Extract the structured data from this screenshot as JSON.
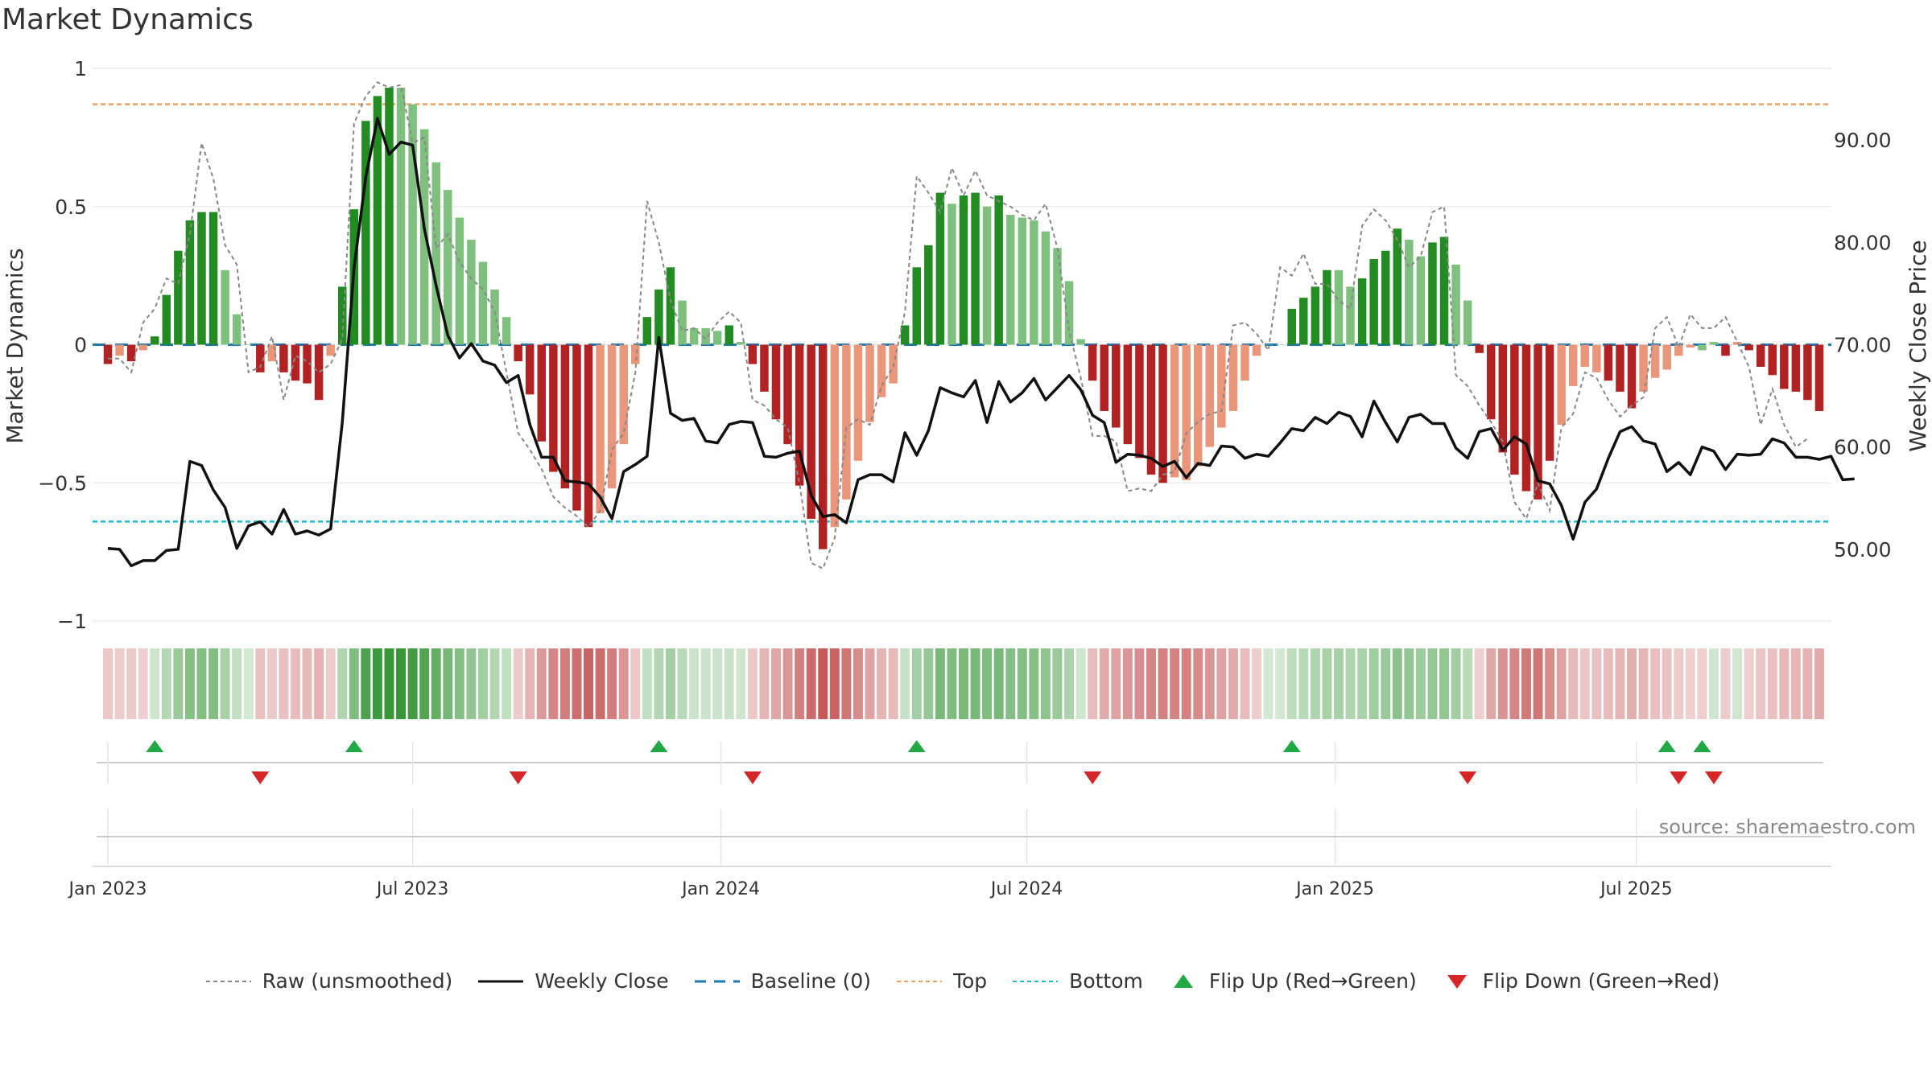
{
  "title": "Market Dynamics",
  "source": "source: sharemaestro.com",
  "colors": {
    "strong_green": "#228b22",
    "light_green": "#7fc07f",
    "strong_red": "#b22222",
    "light_red": "#e9967a",
    "close_line": "#111111",
    "raw_line": "#888888",
    "baseline": "#1f77b4",
    "top_line": "#f0a060",
    "bottom_line": "#17becf",
    "flip_up": "#22a845",
    "flip_down": "#d62728"
  },
  "legend": {
    "raw": "Raw (unsmoothed)",
    "close": "Weekly Close",
    "baseline": "Baseline (0)",
    "top": "Top",
    "bottom": "Bottom",
    "flip_up": "Flip Up (Red→Green)",
    "flip_down": "Flip Down (Green→Red)"
  },
  "chart_data": {
    "type": "bar",
    "title": "Market Dynamics",
    "ylabel_left": "Market Dynamics",
    "ylabel_right": "Weekly Close Price",
    "ylim_left": [
      -1,
      1
    ],
    "ylim_right": [
      43,
      97
    ],
    "left_ticks": [
      {
        "v": 1,
        "label": "1"
      },
      {
        "v": 0.5,
        "label": "0.5"
      },
      {
        "v": 0,
        "label": "0"
      },
      {
        "v": -0.5,
        "label": "−0.5"
      },
      {
        "v": -1,
        "label": "−1"
      }
    ],
    "right_ticks": [
      {
        "v": 90,
        "label": "90.00"
      },
      {
        "v": 80,
        "label": "80.00"
      },
      {
        "v": 70,
        "label": "70.00"
      },
      {
        "v": 60,
        "label": "60.00"
      },
      {
        "v": 50,
        "label": "50.00"
      }
    ],
    "x_ticks": [
      {
        "i": 0,
        "label": "Jan 2023"
      },
      {
        "i": 26,
        "label": "Jul 2023"
      },
      {
        "i": 52.3,
        "label": "Jan 2024"
      },
      {
        "i": 78.4,
        "label": "Jul 2024"
      },
      {
        "i": 104.7,
        "label": "Jan 2025"
      },
      {
        "i": 130.4,
        "label": "Jul 2025"
      }
    ],
    "top_level": 0.87,
    "bottom_level": -0.64,
    "baseline": 0,
    "md_values": [
      -0.07,
      -0.04,
      -0.06,
      -0.02,
      0.03,
      0.18,
      0.34,
      0.45,
      0.48,
      0.48,
      0.27,
      0.11,
      0.0,
      -0.1,
      -0.06,
      -0.1,
      -0.13,
      -0.14,
      -0.2,
      -0.04,
      0.21,
      0.49,
      0.81,
      0.9,
      0.93,
      0.93,
      0.87,
      0.78,
      0.66,
      0.56,
      0.46,
      0.38,
      0.3,
      0.2,
      0.1,
      -0.06,
      -0.18,
      -0.35,
      -0.46,
      -0.52,
      -0.6,
      -0.66,
      -0.61,
      -0.52,
      -0.36,
      -0.07,
      0.1,
      0.2,
      0.28,
      0.16,
      0.06,
      0.06,
      0.05,
      0.07,
      0.01,
      -0.07,
      -0.17,
      -0.27,
      -0.36,
      -0.51,
      -0.63,
      -0.74,
      -0.66,
      -0.56,
      -0.42,
      -0.28,
      -0.19,
      -0.14,
      0.07,
      0.28,
      0.36,
      0.55,
      0.51,
      0.54,
      0.55,
      0.5,
      0.54,
      0.47,
      0.46,
      0.45,
      0.41,
      0.35,
      0.23,
      0.02,
      -0.13,
      -0.24,
      -0.3,
      -0.36,
      -0.41,
      -0.47,
      -0.5,
      -0.48,
      -0.49,
      -0.44,
      -0.37,
      -0.3,
      -0.24,
      -0.13,
      -0.04,
      0.0,
      0.0,
      0.13,
      0.17,
      0.21,
      0.27,
      0.27,
      0.21,
      0.24,
      0.31,
      0.34,
      0.42,
      0.38,
      0.32,
      0.37,
      0.39,
      0.29,
      0.16,
      -0.03,
      -0.27,
      -0.39,
      -0.47,
      -0.53,
      -0.56,
      -0.42,
      -0.29,
      -0.15,
      -0.08,
      -0.1,
      -0.13,
      -0.17,
      -0.23,
      -0.17,
      -0.12,
      -0.09,
      -0.04,
      -0.01,
      -0.02,
      0.01,
      -0.04,
      0.01,
      -0.02,
      -0.08,
      -0.11,
      -0.16,
      -0.17,
      -0.2,
      -0.24
    ],
    "bar_colors": [
      "sr",
      "lr",
      "sr",
      "lr",
      "sg",
      "sg",
      "sg",
      "sg",
      "sg",
      "sg",
      "lg",
      "lg",
      "lg",
      "sr",
      "lr",
      "sr",
      "sr",
      "sr",
      "sr",
      "lr",
      "sg",
      "sg",
      "sg",
      "sg",
      "sg",
      "lg",
      "lg",
      "lg",
      "lg",
      "lg",
      "lg",
      "lg",
      "lg",
      "lg",
      "lg",
      "sr",
      "sr",
      "sr",
      "sr",
      "sr",
      "sr",
      "sr",
      "lr",
      "lr",
      "lr",
      "lr",
      "sg",
      "sg",
      "sg",
      "lg",
      "lg",
      "lg",
      "lg",
      "sg",
      "lg",
      "sr",
      "sr",
      "sr",
      "sr",
      "sr",
      "sr",
      "sr",
      "lr",
      "lr",
      "lr",
      "lr",
      "lr",
      "lr",
      "sg",
      "sg",
      "sg",
      "sg",
      "lg",
      "sg",
      "sg",
      "lg",
      "sg",
      "lg",
      "lg",
      "lg",
      "lg",
      "lg",
      "lg",
      "lg",
      "sr",
      "sr",
      "sr",
      "sr",
      "sr",
      "sr",
      "sr",
      "lr",
      "lr",
      "lr",
      "lr",
      "lr",
      "lr",
      "lr",
      "lr",
      "lg",
      "lg",
      "sg",
      "sg",
      "sg",
      "sg",
      "lg",
      "lg",
      "sg",
      "sg",
      "sg",
      "sg",
      "lg",
      "lg",
      "sg",
      "sg",
      "lg",
      "lg",
      "sr",
      "sr",
      "sr",
      "sr",
      "sr",
      "sr",
      "sr",
      "lr",
      "lr",
      "lr",
      "lr",
      "sr",
      "sr",
      "sr",
      "lr",
      "lr",
      "lr",
      "lr",
      "lr",
      "lg",
      "lg",
      "sr",
      "lr",
      "sr",
      "sr",
      "sr",
      "sr",
      "sr",
      "sr",
      "sr"
    ],
    "raw_values": [
      -0.05,
      -0.05,
      -0.1,
      0.08,
      0.13,
      0.24,
      0.22,
      0.4,
      0.73,
      0.6,
      0.36,
      0.29,
      -0.1,
      -0.08,
      0.03,
      -0.2,
      -0.04,
      -0.06,
      -0.1,
      -0.07,
      0.02,
      0.8,
      0.9,
      0.95,
      0.93,
      0.94,
      0.73,
      0.75,
      0.35,
      0.4,
      0.3,
      0.24,
      0.2,
      0.12,
      -0.1,
      -0.32,
      -0.38,
      -0.45,
      -0.55,
      -0.59,
      -0.62,
      -0.66,
      -0.6,
      -0.38,
      -0.32,
      -0.1,
      0.52,
      0.37,
      0.16,
      0.05,
      0.06,
      0.02,
      0.08,
      0.12,
      0.08,
      -0.2,
      -0.22,
      -0.27,
      -0.3,
      -0.5,
      -0.79,
      -0.81,
      -0.7,
      -0.3,
      -0.27,
      -0.29,
      -0.15,
      -0.08,
      0.12,
      0.61,
      0.55,
      0.48,
      0.64,
      0.54,
      0.63,
      0.54,
      0.52,
      0.5,
      0.47,
      0.45,
      0.51,
      0.35,
      0.05,
      -0.12,
      -0.33,
      -0.33,
      -0.35,
      -0.53,
      -0.52,
      -0.53,
      -0.47,
      -0.46,
      -0.32,
      -0.28,
      -0.25,
      -0.24,
      0.07,
      0.08,
      0.04,
      -0.02,
      0.28,
      0.25,
      0.33,
      0.22,
      0.22,
      0.16,
      0.13,
      0.43,
      0.49,
      0.45,
      0.38,
      0.28,
      0.32,
      0.48,
      0.5,
      -0.11,
      -0.15,
      -0.22,
      -0.28,
      -0.35,
      -0.57,
      -0.63,
      -0.5,
      -0.6,
      -0.3,
      -0.25,
      -0.1,
      -0.12,
      -0.2,
      -0.26,
      -0.22,
      -0.19,
      0.06,
      0.1,
      -0.01,
      0.11,
      0.06,
      0.06,
      0.1,
      0.01,
      -0.08,
      -0.29,
      -0.16,
      -0.29,
      -0.37,
      -0.34
    ],
    "close_values": [
      50.1,
      50.0,
      48.4,
      48.9,
      48.9,
      49.9,
      50.0,
      58.6,
      58.2,
      55.8,
      54.1,
      50.1,
      52.3,
      52.7,
      51.5,
      53.9,
      51.5,
      51.8,
      51.4,
      52.0,
      62.4,
      77.5,
      86.4,
      92.1,
      88.6,
      89.8,
      89.5,
      81.3,
      75.8,
      70.9,
      68.7,
      70.1,
      68.4,
      68.0,
      66.3,
      67.0,
      62.2,
      59.0,
      59.0,
      56.7,
      56.6,
      56.4,
      55.1,
      53.0,
      57.6,
      58.3,
      59.1,
      70.7,
      63.3,
      62.6,
      62.8,
      60.6,
      60.4,
      62.2,
      62.5,
      62.4,
      59.1,
      59.0,
      59.4,
      59.6,
      55.3,
      53.2,
      53.4,
      52.6,
      56.8,
      57.3,
      57.3,
      56.6,
      61.4,
      59.2,
      61.6,
      65.8,
      65.3,
      64.9,
      66.5,
      62.4,
      66.4,
      64.4,
      65.3,
      66.7,
      64.6,
      65.8,
      67.0,
      65.6,
      63.1,
      62.4,
      58.5,
      59.3,
      59.2,
      58.9,
      58.1,
      58.6,
      57.0,
      58.4,
      58.2,
      60.1,
      60.0,
      58.9,
      59.3,
      59.1,
      60.4,
      61.8,
      61.6,
      62.9,
      62.3,
      63.4,
      63.0,
      61.0,
      64.5,
      62.4,
      60.5,
      62.9,
      63.2,
      62.3,
      62.3,
      59.9,
      58.9,
      61.5,
      61.8,
      59.7,
      61.0,
      60.3,
      56.7,
      56.4,
      54.3,
      51.0,
      54.6,
      55.9,
      58.9,
      61.5,
      62.0,
      60.6,
      60.3,
      57.6,
      58.5,
      57.3,
      60.0,
      59.6,
      57.8,
      59.3,
      59.2,
      59.3,
      60.8,
      60.4,
      59.0,
      59.0,
      58.8,
      59.1,
      56.8,
      56.9
    ],
    "flip_up_indices": [
      4,
      21,
      47,
      69,
      101,
      133,
      136
    ],
    "flip_down_indices": [
      13,
      35,
      55,
      84,
      116,
      134,
      137
    ]
  }
}
